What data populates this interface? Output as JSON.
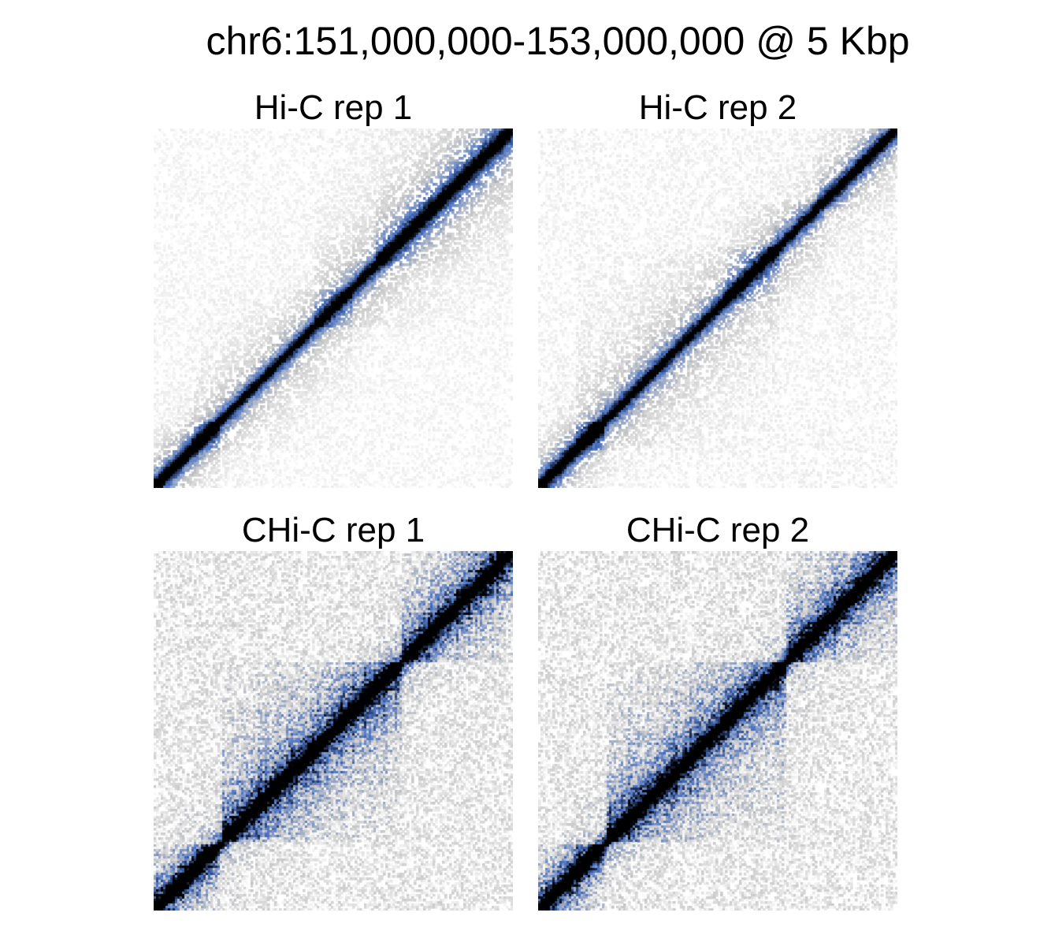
{
  "title": "chr6:151,000,000-153,000,000 @ 5 Kbp",
  "colors": {
    "background": "#ffffff",
    "colormap": [
      "#ffffff",
      "#c9c9c9",
      "#4a72c4",
      "#000000"
    ]
  },
  "chart_data": [
    {
      "type": "heatmap",
      "title": "Hi-C rep 1",
      "region": "chr6:151,000,000-153,000,000",
      "resolution": "5 Kbp",
      "noise_level": 0.25,
      "domains": [
        [
          0.0,
          0.18,
          0.9
        ],
        [
          0.1,
          0.55,
          0.35
        ],
        [
          0.45,
          1.0,
          0.45
        ],
        [
          0.62,
          1.0,
          0.5
        ]
      ]
    },
    {
      "type": "heatmap",
      "title": "Hi-C rep 2",
      "region": "chr6:151,000,000-153,000,000",
      "resolution": "5 Kbp",
      "noise_level": 0.3,
      "domains": [
        [
          0.0,
          0.18,
          0.95
        ],
        [
          0.1,
          0.67,
          0.45
        ],
        [
          0.52,
          0.8,
          0.5
        ],
        [
          0.78,
          1.0,
          0.7
        ]
      ]
    },
    {
      "type": "heatmap",
      "title": "CHi-C rep 1",
      "region": "chr6:151,000,000-153,000,000",
      "resolution": "5 Kbp",
      "noise_level": 0.55,
      "domains": [
        [
          0.0,
          0.18,
          1.0
        ],
        [
          0.19,
          0.69,
          0.85
        ],
        [
          0.69,
          1.0,
          0.9
        ]
      ]
    },
    {
      "type": "heatmap",
      "title": "CHi-C rep 2",
      "region": "chr6:151,000,000-153,000,000",
      "resolution": "5 Kbp",
      "noise_level": 0.55,
      "domains": [
        [
          0.0,
          0.18,
          1.0
        ],
        [
          0.19,
          0.69,
          0.85
        ],
        [
          0.69,
          1.0,
          0.9
        ]
      ]
    }
  ]
}
